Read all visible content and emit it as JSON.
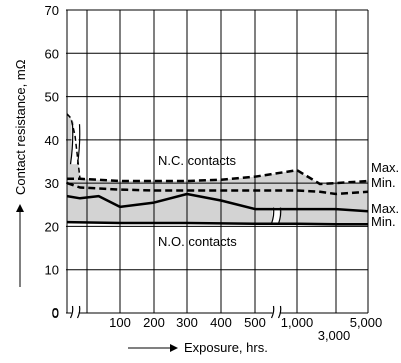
{
  "chart_data": {
    "type": "line",
    "title": "",
    "xlabel": "Exposure, hrs.",
    "ylabel": "Contact resistance, mΩ",
    "ylim": [
      0,
      70
    ],
    "y_ticks": [
      0,
      10,
      20,
      30,
      40,
      50,
      60,
      70
    ],
    "x_ticks": [
      "100",
      "200",
      "300",
      "400",
      "500",
      "1,000",
      "3,000",
      "5,000"
    ],
    "x_scale": "broken axis, non-linear beyond 500 hrs",
    "grid": true,
    "fill_color": "#d3d3d3",
    "series": [
      {
        "name": "Max.",
        "group": "N.C. contacts",
        "style": "dashed",
        "x": [
          0,
          25,
          100,
          200,
          300,
          400,
          500,
          1000,
          2000,
          3000,
          5000
        ],
        "values": [
          31,
          31,
          30.5,
          30.5,
          30.5,
          30.8,
          31.5,
          33,
          29.8,
          30,
          30.5
        ]
      },
      {
        "name": "Min.",
        "group": "N.C. contacts",
        "style": "dashed",
        "x": [
          0,
          25,
          100,
          200,
          300,
          400,
          500,
          1000,
          2000,
          3000,
          5000
        ],
        "values": [
          30,
          29,
          28.5,
          28.3,
          28.3,
          28.3,
          28.3,
          28.3,
          28,
          27.5,
          28
        ]
      },
      {
        "name": "Max.",
        "group": "N.O. contacts",
        "style": "solid",
        "x": [
          0,
          25,
          60,
          100,
          150,
          200,
          300,
          400,
          500,
          1000,
          3000,
          5000
        ],
        "values": [
          27,
          26.5,
          27,
          24.5,
          25,
          25.5,
          27.5,
          26,
          24,
          24,
          24,
          23.5
        ]
      },
      {
        "name": "Min.",
        "group": "N.O. contacts",
        "style": "solid",
        "x": [
          0,
          100,
          300,
          500,
          1000,
          3000,
          5000
        ],
        "values": [
          21,
          20.8,
          20.8,
          20.6,
          20.6,
          20.5,
          20.5
        ]
      }
    ],
    "annotations": [
      "N.C. contacts",
      "N.O. contacts"
    ]
  }
}
